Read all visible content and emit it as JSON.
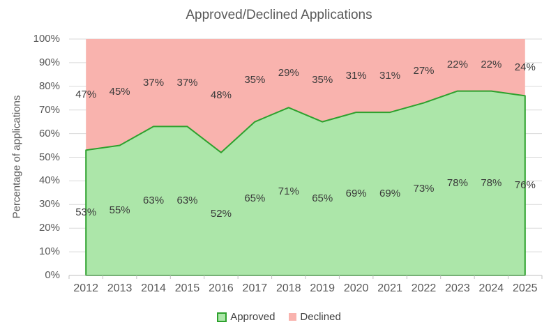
{
  "title": "Approved/Declined Applications",
  "y_axis": {
    "title": "Percentage of applications",
    "tick_labels": [
      "0%",
      "10%",
      "20%",
      "30%",
      "40%",
      "50%",
      "60%",
      "70%",
      "80%",
      "90%",
      "100%"
    ]
  },
  "x_axis": {
    "tick_labels": [
      "2012",
      "2013",
      "2014",
      "2015",
      "2016",
      "2017",
      "2018",
      "2019",
      "2020",
      "2021",
      "2022",
      "2023",
      "2024",
      "2025"
    ]
  },
  "legend": {
    "position": "bottom",
    "items": [
      {
        "label": "Approved",
        "swatch": "green-square"
      },
      {
        "label": "Declined",
        "swatch": "pink-square"
      }
    ]
  },
  "chart_data": {
    "type": "area",
    "stacked": true,
    "title": "Approved/Declined Applications",
    "xlabel": "",
    "ylabel": "Percentage of applications",
    "categories": [
      "2012",
      "2013",
      "2014",
      "2015",
      "2016",
      "2017",
      "2018",
      "2019",
      "2020",
      "2021",
      "2022",
      "2023",
      "2024",
      "2025"
    ],
    "series": [
      {
        "name": "Approved",
        "values": [
          53,
          55,
          63,
          63,
          52,
          65,
          71,
          65,
          69,
          69,
          73,
          78,
          78,
          76
        ],
        "fill": "#ACE6A9",
        "stroke": "#2DA12D",
        "stroke_width": 2
      },
      {
        "name": "Declined",
        "values": [
          47,
          45,
          37,
          37,
          48,
          35,
          29,
          35,
          31,
          31,
          27,
          22,
          22,
          24
        ],
        "fill": "#F9B3AE",
        "stroke": "none",
        "stroke_width": 0
      }
    ],
    "data_labels": "value-percent",
    "ylim": [
      0,
      100
    ],
    "y_tick_step": 10,
    "grid": "horizontal",
    "legend_position": "bottom"
  },
  "colors": {
    "gridline": "#D9D9D9",
    "axis_line": "#BFBFBF",
    "tick_mark": "#BFBFBF",
    "axis_text": "#595959",
    "title_text": "#595959",
    "data_label_text": "#3A3A3A",
    "legend_text": "#404040",
    "background": "#FFFFFF"
  }
}
